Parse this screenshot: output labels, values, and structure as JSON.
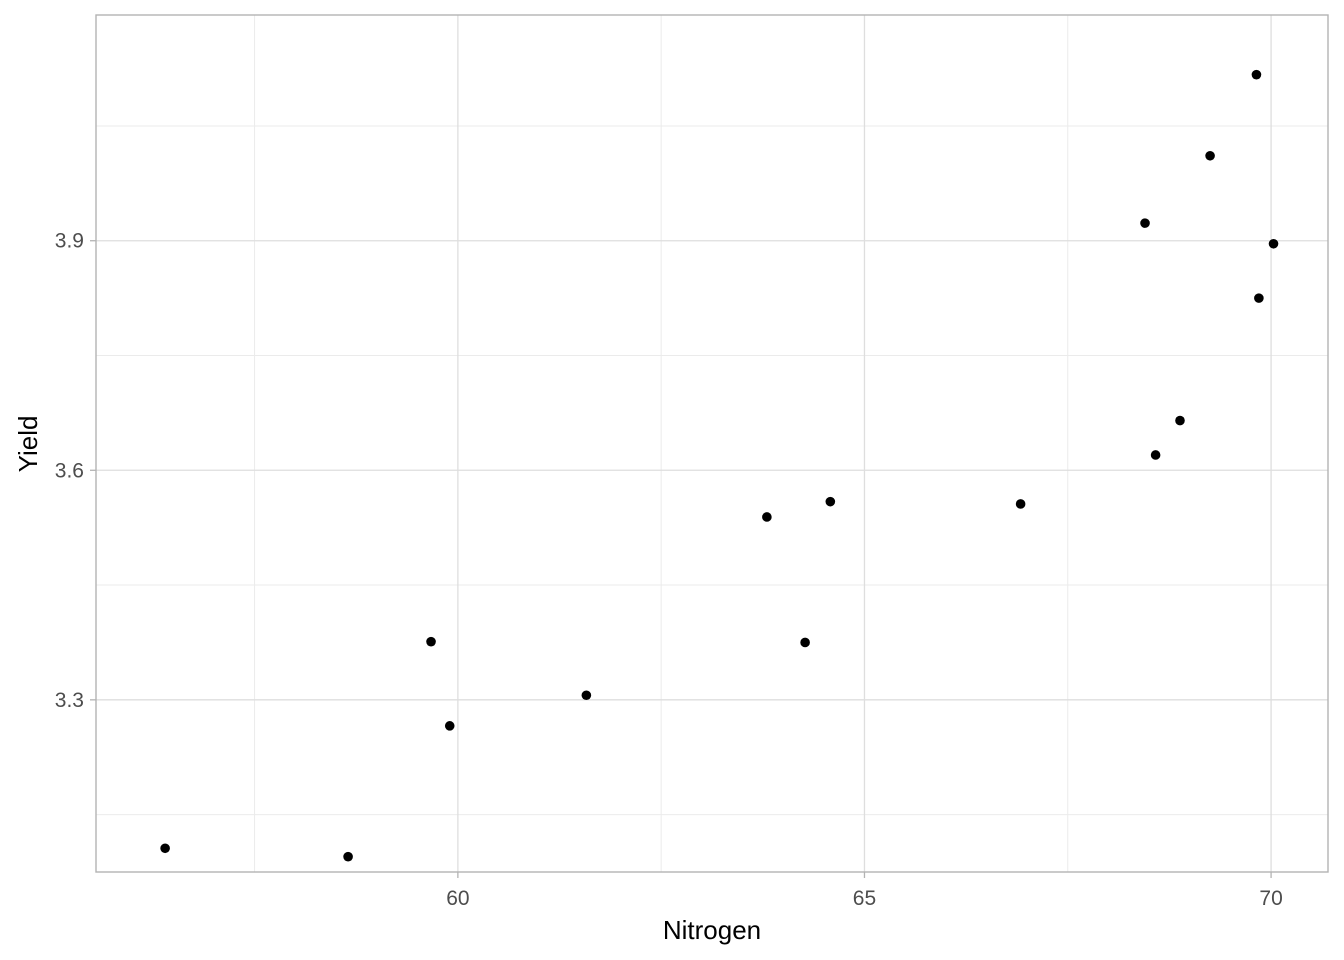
{
  "chart_data": {
    "type": "scatter",
    "title": "",
    "xlabel": "Nitrogen",
    "ylabel": "Yield",
    "xlim": [
      55.55,
      70.7
    ],
    "ylim": [
      3.075,
      4.195
    ],
    "x_ticks": [
      60,
      65,
      70
    ],
    "x_tick_labels": [
      "60",
      "65",
      "70"
    ],
    "y_ticks": [
      3.3,
      3.6,
      3.9
    ],
    "y_tick_labels": [
      "3.3",
      "3.6",
      "3.9"
    ],
    "grid": true,
    "point_color": "#000000",
    "points": [
      {
        "x": 56.4,
        "y": 3.106
      },
      {
        "x": 58.65,
        "y": 3.095
      },
      {
        "x": 59.67,
        "y": 3.376
      },
      {
        "x": 59.9,
        "y": 3.266
      },
      {
        "x": 61.58,
        "y": 3.306
      },
      {
        "x": 63.8,
        "y": 3.539
      },
      {
        "x": 64.27,
        "y": 3.375
      },
      {
        "x": 64.58,
        "y": 3.559
      },
      {
        "x": 66.92,
        "y": 3.556
      },
      {
        "x": 68.45,
        "y": 3.923
      },
      {
        "x": 68.58,
        "y": 3.62
      },
      {
        "x": 68.88,
        "y": 3.665
      },
      {
        "x": 69.25,
        "y": 4.011
      },
      {
        "x": 69.82,
        "y": 4.117
      },
      {
        "x": 69.85,
        "y": 3.825
      },
      {
        "x": 70.03,
        "y": 3.896
      }
    ]
  }
}
